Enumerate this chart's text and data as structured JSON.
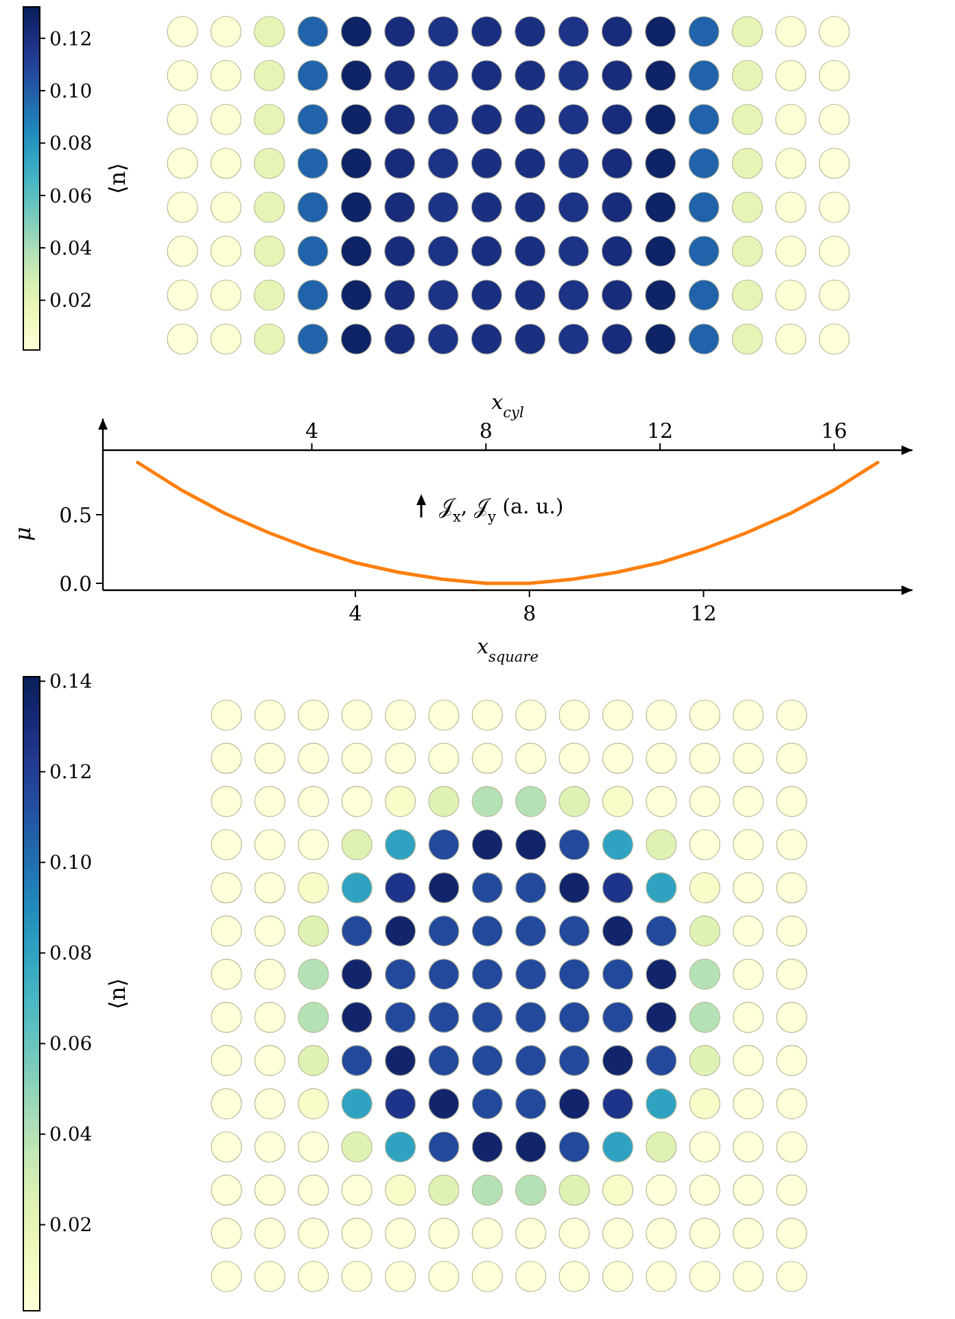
{
  "chart_data": [
    {
      "type": "heatmap",
      "categories": [
        null,
        null,
        null,
        null,
        null,
        null,
        null,
        null,
        null,
        null,
        null,
        null,
        null,
        null,
        null,
        null
      ],
      "y_categories": [
        null,
        null,
        null,
        null,
        null,
        null,
        null,
        null
      ],
      "clabel": "⟨n⟩",
      "clim": [
        0.001,
        0.132
      ],
      "cticks": [
        0.02,
        0.04,
        0.06,
        0.08,
        {
          "value": 0.1,
          "label": "0.10"
        },
        0.12
      ],
      "cells": [
        [
          0.001,
          0.003,
          0.02,
          0.098,
          0.128,
          0.122,
          0.118,
          0.12,
          0.12,
          0.118,
          0.122,
          0.128,
          0.098,
          0.02,
          0.003,
          0.001
        ],
        [
          0.001,
          0.003,
          0.02,
          0.098,
          0.128,
          0.122,
          0.118,
          0.12,
          0.12,
          0.118,
          0.122,
          0.128,
          0.098,
          0.02,
          0.003,
          0.001
        ],
        [
          0.001,
          0.003,
          0.02,
          0.098,
          0.128,
          0.122,
          0.118,
          0.12,
          0.12,
          0.118,
          0.122,
          0.128,
          0.098,
          0.02,
          0.003,
          0.001
        ],
        [
          0.001,
          0.003,
          0.02,
          0.098,
          0.128,
          0.122,
          0.118,
          0.12,
          0.12,
          0.118,
          0.122,
          0.128,
          0.098,
          0.02,
          0.003,
          0.001
        ],
        [
          0.001,
          0.003,
          0.02,
          0.098,
          0.128,
          0.122,
          0.118,
          0.12,
          0.12,
          0.118,
          0.122,
          0.128,
          0.098,
          0.02,
          0.003,
          0.001
        ],
        [
          0.001,
          0.003,
          0.02,
          0.098,
          0.128,
          0.122,
          0.118,
          0.12,
          0.12,
          0.118,
          0.122,
          0.128,
          0.098,
          0.02,
          0.003,
          0.001
        ],
        [
          0.001,
          0.003,
          0.02,
          0.098,
          0.128,
          0.122,
          0.118,
          0.12,
          0.12,
          0.118,
          0.122,
          0.128,
          0.098,
          0.02,
          0.003,
          0.001
        ],
        [
          0.001,
          0.003,
          0.02,
          0.098,
          0.128,
          0.122,
          0.118,
          0.12,
          0.12,
          0.118,
          0.122,
          0.128,
          0.098,
          0.02,
          0.003,
          0.001
        ]
      ]
    },
    {
      "type": "line",
      "xlabel": "x$_{square}$",
      "x2label": "x$_{cyl}$",
      "ylabel": "μ",
      "xlim": [
        -1.8,
        16.8
      ],
      "xticks": [
        4,
        8,
        12
      ],
      "x2lim": [
        -0.8,
        17.8
      ],
      "x2ticks": [
        4,
        8,
        12,
        16
      ],
      "ylim": [
        -0.05,
        1.2
      ],
      "yticks": [
        {
          "value": 0,
          "label": "0.0"
        },
        0.5
      ],
      "annotations": [
        "𝒥$_{x}$, 𝒥$_{y}$ (a. u.)"
      ],
      "series": [
        {
          "color": "#ff7f0e",
          "x": [
            -1,
            0,
            1,
            2,
            3,
            4,
            5,
            6,
            7,
            7.5,
            8,
            9,
            10,
            11,
            12,
            13,
            14,
            15,
            16
          ],
          "values": [
            0.88,
            0.68,
            0.51,
            0.37,
            0.25,
            0.15,
            0.08,
            0.03,
            0.0,
            0.0,
            0.0,
            0.03,
            0.08,
            0.15,
            0.25,
            0.37,
            0.51,
            0.68,
            0.88
          ]
        }
      ]
    },
    {
      "type": "heatmap",
      "categories": [
        null,
        null,
        null,
        null,
        null,
        null,
        null,
        null,
        null,
        null,
        null,
        null,
        null,
        null
      ],
      "y_categories": [
        null,
        null,
        null,
        null,
        null,
        null,
        null,
        null,
        null,
        null,
        null,
        null,
        null,
        null
      ],
      "clabel": "⟨n⟩",
      "clim": [
        0.001,
        0.141
      ],
      "cticks": [
        0.02,
        0.04,
        0.06,
        0.08,
        {
          "value": 0.1,
          "label": "0.10"
        },
        0.12,
        0.14
      ],
      "cells": [
        [
          0.001,
          0.001,
          0.001,
          0.001,
          0.001,
          0.001,
          0.001,
          0.001,
          0.001,
          0.001,
          0.001,
          0.001,
          0.001,
          0.001
        ],
        [
          0.001,
          0.001,
          0.001,
          0.001,
          0.001,
          0.001,
          0.001,
          0.001,
          0.001,
          0.001,
          0.001,
          0.001,
          0.001,
          0.001
        ],
        [
          0.001,
          0.001,
          0.001,
          0.001,
          0.008,
          0.025,
          0.04,
          0.04,
          0.025,
          0.008,
          0.001,
          0.001,
          0.001,
          0.001
        ],
        [
          0.001,
          0.001,
          0.001,
          0.025,
          0.08,
          0.115,
          0.135,
          0.135,
          0.115,
          0.08,
          0.025,
          0.001,
          0.001,
          0.001
        ],
        [
          0.001,
          0.001,
          0.008,
          0.08,
          0.125,
          0.135,
          0.115,
          0.115,
          0.135,
          0.125,
          0.08,
          0.008,
          0.001,
          0.001
        ],
        [
          0.001,
          0.001,
          0.025,
          0.115,
          0.135,
          0.115,
          0.115,
          0.115,
          0.115,
          0.135,
          0.115,
          0.025,
          0.001,
          0.001
        ],
        [
          0.001,
          0.001,
          0.04,
          0.135,
          0.115,
          0.115,
          0.115,
          0.115,
          0.115,
          0.115,
          0.135,
          0.04,
          0.001,
          0.001
        ],
        [
          0.001,
          0.001,
          0.04,
          0.135,
          0.115,
          0.115,
          0.115,
          0.115,
          0.115,
          0.115,
          0.135,
          0.04,
          0.001,
          0.001
        ],
        [
          0.001,
          0.001,
          0.025,
          0.115,
          0.135,
          0.115,
          0.115,
          0.115,
          0.115,
          0.135,
          0.115,
          0.025,
          0.001,
          0.001
        ],
        [
          0.001,
          0.001,
          0.008,
          0.08,
          0.125,
          0.135,
          0.115,
          0.115,
          0.135,
          0.125,
          0.08,
          0.008,
          0.001,
          0.001
        ],
        [
          0.001,
          0.001,
          0.001,
          0.025,
          0.08,
          0.115,
          0.135,
          0.135,
          0.115,
          0.08,
          0.025,
          0.001,
          0.001,
          0.001
        ],
        [
          0.001,
          0.001,
          0.001,
          0.001,
          0.008,
          0.025,
          0.04,
          0.04,
          0.025,
          0.008,
          0.001,
          0.001,
          0.001,
          0.001
        ],
        [
          0.001,
          0.001,
          0.001,
          0.001,
          0.001,
          0.001,
          0.001,
          0.001,
          0.001,
          0.001,
          0.001,
          0.001,
          0.001,
          0.001
        ],
        [
          0.001,
          0.001,
          0.001,
          0.001,
          0.001,
          0.001,
          0.001,
          0.001,
          0.001,
          0.001,
          0.001,
          0.001,
          0.001,
          0.001
        ]
      ]
    }
  ]
}
